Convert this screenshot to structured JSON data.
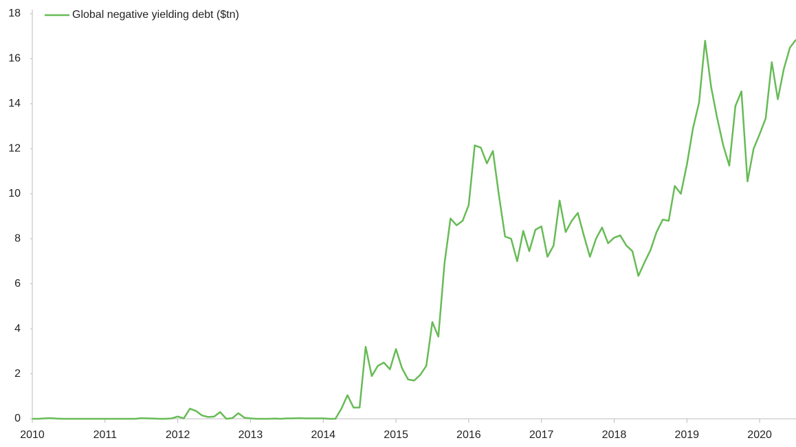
{
  "chart_data": {
    "type": "line",
    "x": [
      2010,
      2010.083,
      2010.167,
      2010.25,
      2010.333,
      2010.417,
      2010.5,
      2010.583,
      2010.667,
      2010.75,
      2010.833,
      2010.917,
      2011,
      2011.083,
      2011.167,
      2011.25,
      2011.333,
      2011.417,
      2011.5,
      2011.583,
      2011.667,
      2011.75,
      2011.833,
      2011.917,
      2012,
      2012.083,
      2012.167,
      2012.25,
      2012.333,
      2012.417,
      2012.5,
      2012.583,
      2012.667,
      2012.75,
      2012.833,
      2012.917,
      2013,
      2013.083,
      2013.167,
      2013.25,
      2013.333,
      2013.417,
      2013.5,
      2013.583,
      2013.667,
      2013.75,
      2013.833,
      2013.917,
      2014,
      2014.083,
      2014.167,
      2014.25,
      2014.333,
      2014.417,
      2014.5,
      2014.583,
      2014.667,
      2014.75,
      2014.833,
      2014.917,
      2015,
      2015.083,
      2015.167,
      2015.25,
      2015.333,
      2015.417,
      2015.5,
      2015.583,
      2015.667,
      2015.75,
      2015.833,
      2015.917,
      2016,
      2016.083,
      2016.167,
      2016.25,
      2016.333,
      2016.417,
      2016.5,
      2016.583,
      2016.667,
      2016.75,
      2016.833,
      2016.917,
      2017,
      2017.083,
      2017.167,
      2017.25,
      2017.333,
      2017.417,
      2017.5,
      2017.583,
      2017.667,
      2017.75,
      2017.833,
      2017.917,
      2018,
      2018.083,
      2018.167,
      2018.25,
      2018.333,
      2018.417,
      2018.5,
      2018.583,
      2018.667,
      2018.75,
      2018.833,
      2018.917,
      2019,
      2019.083,
      2019.167,
      2019.25,
      2019.333,
      2019.417,
      2019.5,
      2019.583,
      2019.667,
      2019.75,
      2019.833,
      2019.917,
      2020,
      2020.083,
      2020.167,
      2020.25,
      2020.333,
      2020.417,
      2020.5
    ],
    "series": [
      {
        "name": "Global negative yielding debt ($tn)",
        "color": "#66bb55",
        "values": [
          0,
          0,
          0.02,
          0.03,
          0.01,
          0,
          0,
          0,
          0,
          0,
          0,
          0,
          0,
          0,
          0,
          0,
          0,
          0,
          0.03,
          0.02,
          0.01,
          0,
          0,
          0.02,
          0.1,
          0.02,
          0.45,
          0.35,
          0.15,
          0.08,
          0.1,
          0.3,
          0,
          0.03,
          0.25,
          0.05,
          0.02,
          0,
          0,
          0,
          0.01,
          0,
          0.02,
          0.02,
          0.03,
          0.02,
          0.02,
          0.02,
          0.02,
          0,
          0,
          0.45,
          1.05,
          0.5,
          0.5,
          3.2,
          1.9,
          2.35,
          2.5,
          2.2,
          3.1,
          2.25,
          1.75,
          1.7,
          1.95,
          2.35,
          4.3,
          3.65,
          6.9,
          8.9,
          8.6,
          8.8,
          9.5,
          12.15,
          12.05,
          11.35,
          11.9,
          9.9,
          8.1,
          8.0,
          7.0,
          8.35,
          7.45,
          8.4,
          8.55,
          7.2,
          7.7,
          9.7,
          8.3,
          8.8,
          9.15,
          8.15,
          7.2,
          8.0,
          8.5,
          7.8,
          8.05,
          8.15,
          7.7,
          7.45,
          6.35,
          6.95,
          7.5,
          8.3,
          8.85,
          8.8,
          10.35,
          10.0,
          11.3,
          12.9,
          14.05,
          16.8,
          14.75,
          13.35,
          12.15,
          11.25,
          13.9,
          14.55,
          10.55,
          12.0,
          12.65,
          13.35,
          15.85,
          14.2,
          15.55,
          16.5,
          16.85
        ]
      }
    ],
    "xlim": [
      2010,
      2020.5
    ],
    "xticks": [
      2010,
      2011,
      2012,
      2013,
      2014,
      2015,
      2016,
      2017,
      2018,
      2019,
      2020
    ],
    "ylim": [
      0,
      18
    ],
    "yticks": [
      0,
      2,
      4,
      6,
      8,
      10,
      12,
      14,
      16,
      18
    ],
    "grid": false,
    "legend": "upper left"
  }
}
